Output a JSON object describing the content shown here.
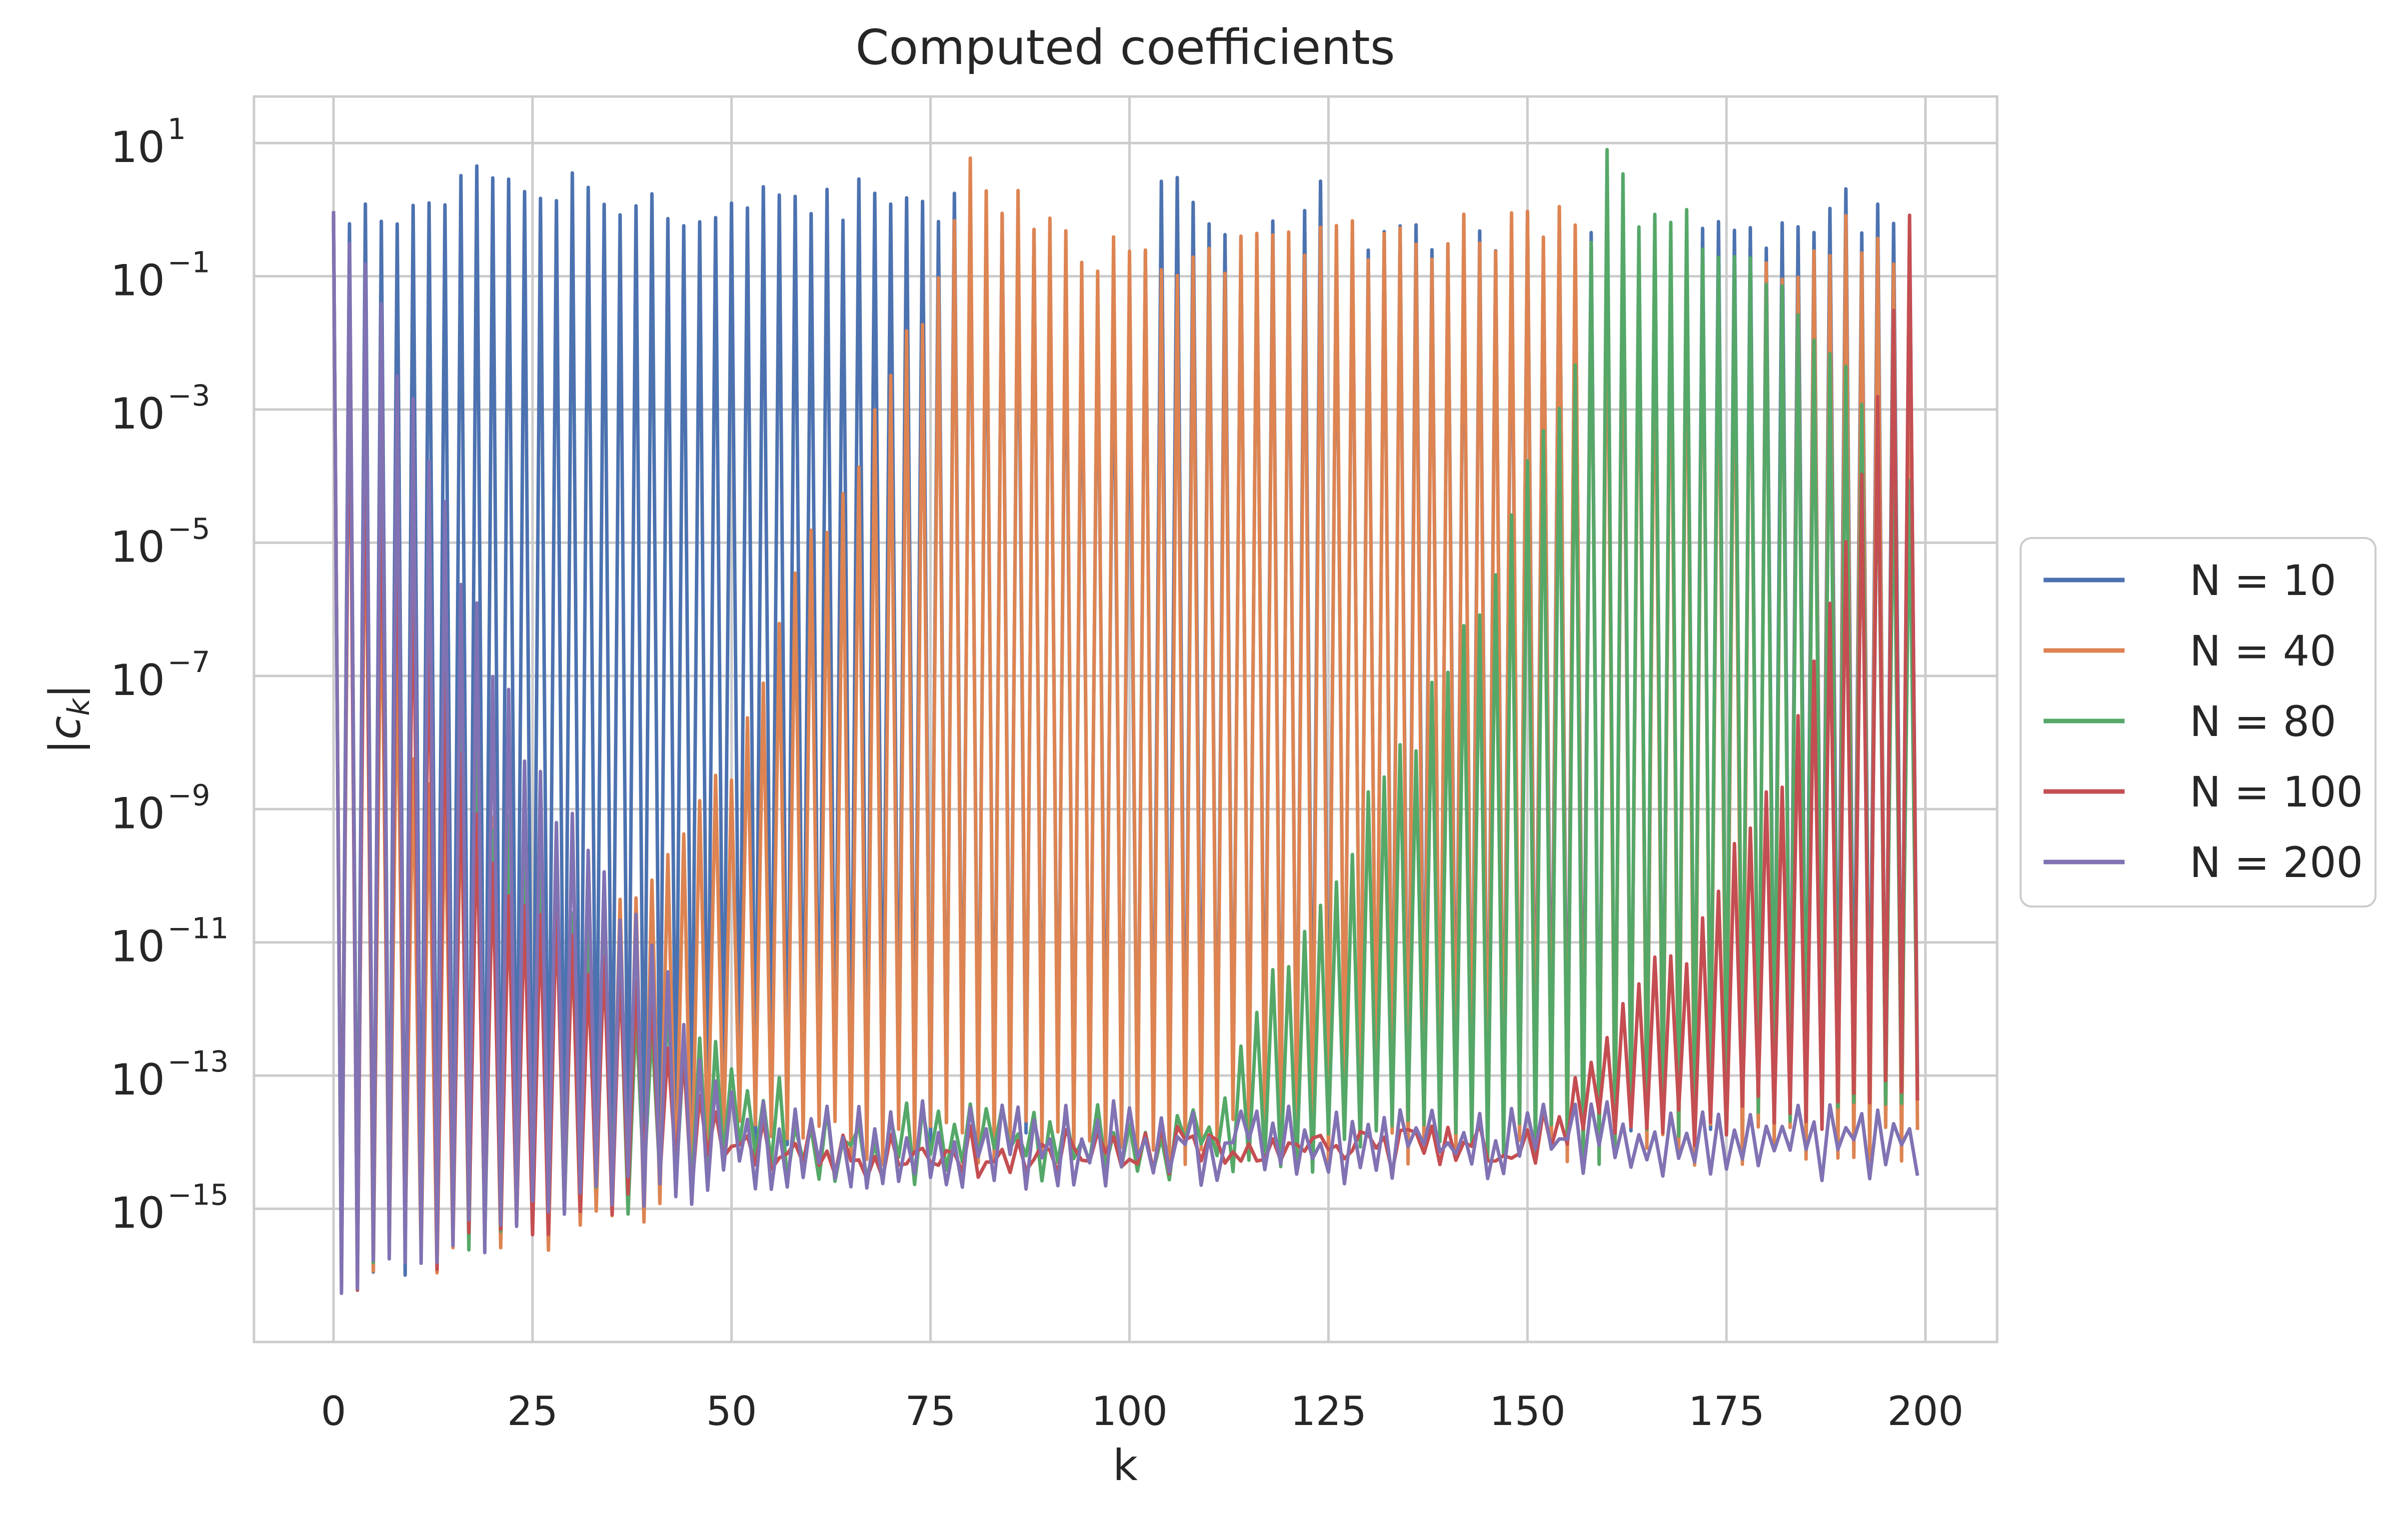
{
  "chart_data": {
    "type": "line",
    "title": "Computed coefficients",
    "xlabel": "k",
    "ylabel": "|c_k|",
    "ylabel_parts": {
      "bar_left": "|",
      "symbol": "c",
      "subscript": "k",
      "bar_right": "|"
    },
    "x_scale": "linear",
    "y_scale": "log",
    "xlim": [
      -10,
      209
    ],
    "ylim": [
      1e-17,
      50
    ],
    "x_ticks": [
      0,
      25,
      50,
      75,
      100,
      125,
      150,
      175,
      200
    ],
    "x_tick_labels": [
      "0",
      "25",
      "50",
      "75",
      "100",
      "125",
      "150",
      "175",
      "200"
    ],
    "y_ticks": [
      1e-15,
      1e-13,
      1e-11,
      1e-09,
      1e-07,
      1e-05,
      0.001,
      0.1,
      10
    ],
    "y_tick_labels": [
      {
        "base": "10",
        "exp": "−15"
      },
      {
        "base": "10",
        "exp": "−13"
      },
      {
        "base": "10",
        "exp": "−11"
      },
      {
        "base": "10",
        "exp": "−9"
      },
      {
        "base": "10",
        "exp": "−7"
      },
      {
        "base": "10",
        "exp": "−5"
      },
      {
        "base": "10",
        "exp": "−3"
      },
      {
        "base": "10",
        "exp": "−1"
      },
      {
        "base": "10",
        "exp": "1"
      }
    ],
    "grid": true,
    "legend_position": "outside-right",
    "series": [
      {
        "name": "N = 10",
        "color": "#4c72b0",
        "n": 200,
        "even_points": [
          [
            0,
            0.5
          ],
          [
            20,
            2.5
          ],
          [
            40,
            1.2
          ],
          [
            60,
            1.5
          ],
          [
            80,
            1.0
          ],
          [
            100,
            0.04
          ],
          [
            104,
            2.5
          ],
          [
            120,
            0.3
          ],
          [
            122,
            1.5
          ],
          [
            124,
            3.0
          ],
          [
            126,
            0.3
          ],
          [
            140,
            0.5
          ],
          [
            160,
            0.4
          ],
          [
            180,
            0.4
          ],
          [
            186,
            0.3
          ],
          [
            190,
            1.0
          ],
          [
            198,
            0.5
          ]
        ],
        "odd_points": [
          [
            1,
            1e-16
          ],
          [
            25,
            1e-15
          ],
          [
            50,
            2e-14
          ],
          [
            75,
            2e-14
          ],
          [
            99,
            2e-14
          ],
          [
            125,
            3e-14
          ],
          [
            150,
            3e-14
          ],
          [
            175,
            3e-14
          ],
          [
            199,
            5e-14
          ]
        ]
      },
      {
        "name": "N = 40",
        "color": "#dd8452",
        "n": 200,
        "even_points": [
          [
            0,
            0.5
          ],
          [
            10,
            5e-09
          ],
          [
            20,
            1e-09
          ],
          [
            30,
            2e-11
          ],
          [
            40,
            1e-10
          ],
          [
            50,
            3e-09
          ],
          [
            60,
            1e-05
          ],
          [
            66,
            0.0001
          ],
          [
            70,
            0.003
          ],
          [
            76,
            0.1
          ],
          [
            80,
            3.0
          ],
          [
            84,
            1.2
          ],
          [
            100,
            0.15
          ],
          [
            120,
            0.3
          ],
          [
            140,
            0.4
          ],
          [
            150,
            0.5
          ],
          [
            156,
            0.5
          ],
          [
            160,
            0.5
          ],
          [
            164,
            0.1
          ],
          [
            180,
            0.1
          ],
          [
            190,
            0.5
          ],
          [
            198,
            0.1
          ]
        ],
        "odd_points": [
          [
            1,
            1e-16
          ],
          [
            43,
            1e-15
          ],
          [
            50,
            1e-14
          ],
          [
            75,
            1e-14
          ],
          [
            100,
            1e-14
          ],
          [
            150,
            1e-14
          ],
          [
            175,
            1e-14
          ],
          [
            199,
            1e-14
          ]
        ]
      },
      {
        "name": "N = 80",
        "color": "#55a868",
        "n": 200,
        "even_points": [
          [
            0,
            0.5
          ],
          [
            20,
            1e-09
          ],
          [
            40,
            1e-12
          ],
          [
            60,
            2e-14
          ],
          [
            100,
            2e-14
          ],
          [
            110,
            3e-14
          ],
          [
            118,
            3e-12
          ],
          [
            130,
            1e-09
          ],
          [
            140,
            1e-07
          ],
          [
            150,
            0.0001
          ],
          [
            156,
            0.01
          ],
          [
            160,
            5.0
          ],
          [
            164,
            1.0
          ],
          [
            170,
            0.6
          ],
          [
            180,
            0.1
          ],
          [
            186,
            0.02
          ],
          [
            198,
            0.0001
          ]
        ],
        "odd_points": [
          [
            1,
            1e-16
          ],
          [
            50,
            5e-15
          ],
          [
            100,
            5e-15
          ],
          [
            115,
            5e-15
          ],
          [
            130,
            1e-14
          ],
          [
            150,
            1e-14
          ],
          [
            160,
            1e-14
          ],
          [
            170,
            3e-14
          ],
          [
            199,
            5e-14
          ]
        ]
      },
      {
        "name": "N = 100",
        "color": "#c44e52",
        "n": 200,
        "even_points": [
          [
            0,
            0.5
          ],
          [
            20,
            1e-10
          ],
          [
            40,
            1e-12
          ],
          [
            50,
            1e-14
          ],
          [
            150,
            1e-14
          ],
          [
            156,
            1e-13
          ],
          [
            162,
            1e-12
          ],
          [
            170,
            1e-11
          ],
          [
            180,
            1e-09
          ],
          [
            186,
            1e-07
          ],
          [
            190,
            1e-05
          ],
          [
            194,
            0.001
          ],
          [
            198,
            1.0
          ]
        ],
        "odd_points": [
          [
            1,
            1e-16
          ],
          [
            50,
            5e-15
          ],
          [
            100,
            5e-15
          ],
          [
            150,
            1e-14
          ],
          [
            199,
            5e-14
          ]
        ]
      },
      {
        "name": "N = 200",
        "color": "#8172b3",
        "n": 200,
        "even_points": [
          [
            0,
            0.5
          ],
          [
            2,
            0.4
          ],
          [
            10,
            0.001
          ],
          [
            20,
            1e-07
          ],
          [
            28,
            1e-09
          ],
          [
            34,
            1e-10
          ],
          [
            40,
            1e-11
          ],
          [
            48,
            1e-13
          ],
          [
            56,
            2e-14
          ],
          [
            100,
            2e-14
          ],
          [
            150,
            2e-14
          ],
          [
            199,
            2e-14
          ]
        ],
        "odd_points": [
          [
            1,
            1e-16
          ],
          [
            10,
            1e-16
          ],
          [
            20,
            5e-16
          ],
          [
            30,
            1e-15
          ],
          [
            40,
            2e-15
          ],
          [
            50,
            3e-15
          ],
          [
            100,
            5e-15
          ],
          [
            150,
            5e-15
          ],
          [
            199,
            5e-15
          ]
        ]
      }
    ]
  }
}
